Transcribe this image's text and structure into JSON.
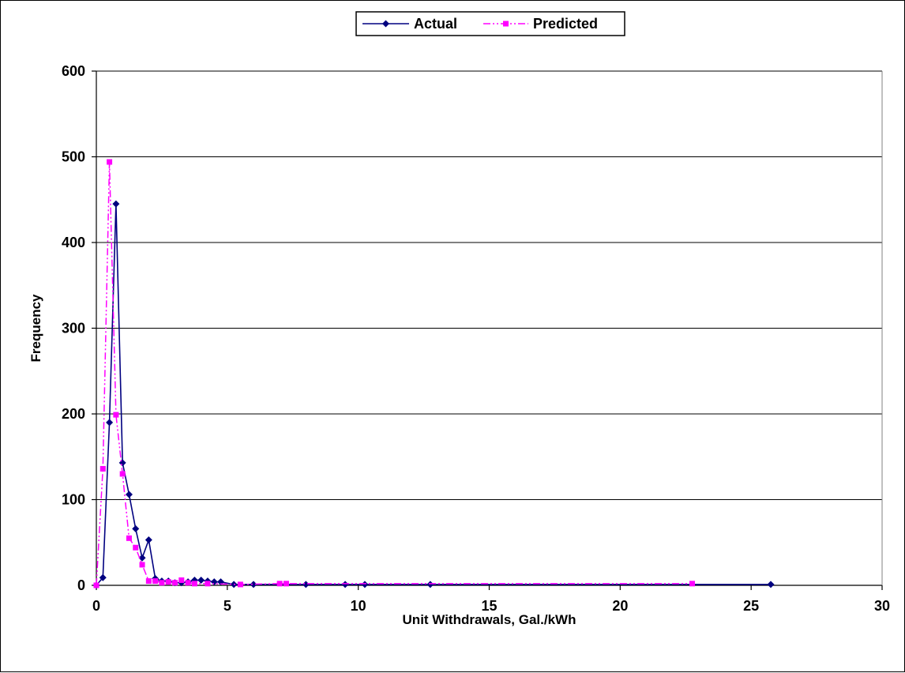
{
  "chart_data": {
    "type": "line",
    "title": "",
    "xlabel": "Unit Withdrawals, Gal./kWh",
    "ylabel": "Frequency",
    "xlim": [
      0,
      30
    ],
    "ylim": [
      0,
      600
    ],
    "xticks": [
      0,
      5,
      10,
      15,
      20,
      25,
      30
    ],
    "yticks": [
      0,
      100,
      200,
      300,
      400,
      500,
      600
    ],
    "grid": "horizontal",
    "legend_position": "top-center",
    "series": [
      {
        "name": "Actual",
        "color": "#000080",
        "line_style": "solid",
        "marker": "diamond",
        "points": [
          [
            0,
            0
          ],
          [
            0.25,
            9
          ],
          [
            0.5,
            190
          ],
          [
            0.75,
            445
          ],
          [
            1.0,
            143
          ],
          [
            1.25,
            106
          ],
          [
            1.5,
            66
          ],
          [
            1.75,
            32
          ],
          [
            2.0,
            53
          ],
          [
            2.25,
            8
          ],
          [
            2.5,
            5
          ],
          [
            2.75,
            5
          ],
          [
            3.0,
            3
          ],
          [
            3.25,
            3
          ],
          [
            3.5,
            4
          ],
          [
            3.75,
            6
          ],
          [
            4.0,
            6
          ],
          [
            4.25,
            5
          ],
          [
            4.5,
            4
          ],
          [
            4.75,
            4
          ],
          [
            5.25,
            1
          ],
          [
            6.0,
            1
          ],
          [
            8.0,
            1
          ],
          [
            9.5,
            1
          ],
          [
            10.25,
            1
          ],
          [
            12.75,
            1
          ],
          [
            25.75,
            1
          ]
        ]
      },
      {
        "name": "Predicted",
        "color": "#FF00FF",
        "line_style": "dash-dot-dot",
        "marker": "square",
        "points": [
          [
            0,
            0
          ],
          [
            0.25,
            136
          ],
          [
            0.5,
            494
          ],
          [
            0.75,
            199
          ],
          [
            1.0,
            130
          ],
          [
            1.25,
            55
          ],
          [
            1.5,
            44
          ],
          [
            1.75,
            24
          ],
          [
            2.0,
            5
          ],
          [
            2.25,
            5
          ],
          [
            2.5,
            3
          ],
          [
            2.75,
            4
          ],
          [
            3.0,
            3
          ],
          [
            3.25,
            6
          ],
          [
            3.5,
            3
          ],
          [
            3.75,
            2
          ],
          [
            4.25,
            2
          ],
          [
            5.5,
            1
          ],
          [
            7.0,
            2
          ],
          [
            7.25,
            2
          ],
          [
            22.75,
            2
          ]
        ]
      }
    ]
  }
}
